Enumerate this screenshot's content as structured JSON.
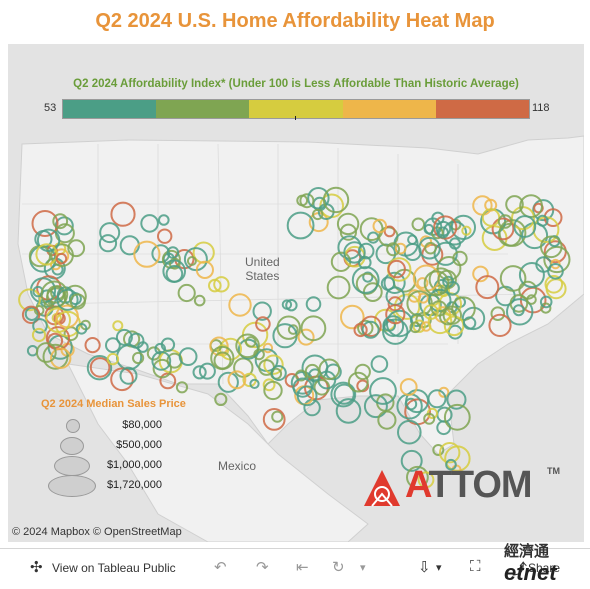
{
  "title": "Q2 2024 U.S. Home Affordability Heat Map",
  "color_legend": {
    "title": "Q2 2024 Affordability Index* (Under 100 is Less Affordable Than Historic Average)",
    "min": "53",
    "max": "118",
    "colors": [
      "#4b9e86",
      "#7fa552",
      "#d6cc3f",
      "#eeb64a",
      "#cf6a45"
    ]
  },
  "map_labels": {
    "country1_line1": "United",
    "country1_line2": "States",
    "country2": "Mexico"
  },
  "size_legend": {
    "title": "Q2 2024 Median Sales Price",
    "items": [
      "$80,000",
      "$500,000",
      "$1,000,000",
      "$1,720,000"
    ]
  },
  "logo": {
    "text": "ATTOM",
    "tm": "TM"
  },
  "attribution": "© 2024 Mapbox  © OpenStreetMap",
  "toolbar": {
    "view_label": "View on Tableau Public",
    "share_label": "Share"
  },
  "corner_watermark": {
    "line1": "經濟通",
    "line2": "etnet"
  }
}
